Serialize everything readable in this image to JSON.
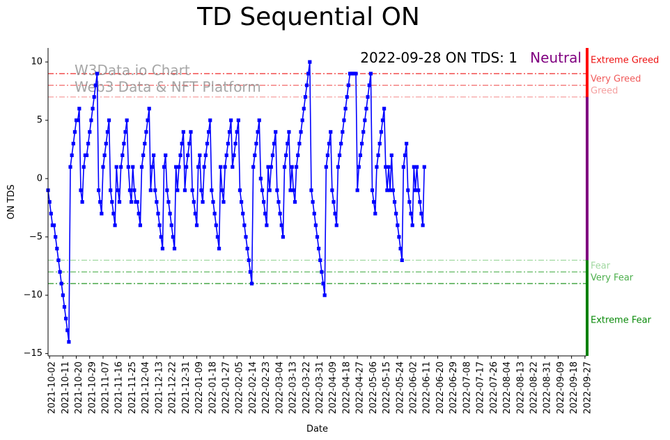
{
  "chart_data": {
    "type": "line",
    "title": "TD Sequential ON",
    "xlabel": "Date",
    "ylabel": "ON TDS",
    "ylim": [
      -15.2,
      11.2
    ],
    "yticks": [
      -15,
      -10,
      -5,
      0,
      5,
      10
    ],
    "status_text": "2022-09-28 ON TDS: 1",
    "status_label": "Neutral",
    "watermark": [
      "W3Data.io Chart",
      "Web3 Data & NFT Platform"
    ],
    "x_start": "2021-10-01",
    "x_end": "2022-09-28",
    "xtick_labels": [
      "2021-10-02",
      "2021-10-11",
      "2021-10-20",
      "2021-10-29",
      "2021-11-07",
      "2021-11-16",
      "2021-11-25",
      "2021-12-04",
      "2021-12-13",
      "2021-12-22",
      "2021-12-31",
      "2022-01-09",
      "2022-01-18",
      "2022-01-27",
      "2022-02-05",
      "2022-02-14",
      "2022-02-23",
      "2022-03-04",
      "2022-03-13",
      "2022-03-22",
      "2022-03-31",
      "2022-04-09",
      "2022-04-18",
      "2022-04-27",
      "2022-05-06",
      "2022-05-15",
      "2022-05-24",
      "2022-06-02",
      "2022-06-11",
      "2022-06-20",
      "2022-06-29",
      "2022-07-08",
      "2022-07-17",
      "2022-07-26",
      "2022-08-04",
      "2022-08-13",
      "2022-08-22",
      "2022-08-31",
      "2022-09-09",
      "2022-09-18",
      "2022-09-27"
    ],
    "thresholds": [
      {
        "label": "Extreme Greed",
        "value": 9,
        "color": "#ee1111"
      },
      {
        "label": "Very Greed",
        "value": 8,
        "color": "#f05a5a"
      },
      {
        "label": "Greed",
        "value": 7,
        "color": "#f5a0a0"
      },
      {
        "label": "Fear",
        "value": -7,
        "color": "#a0d8a0"
      },
      {
        "label": "Very Fear",
        "value": -8,
        "color": "#4caf4c"
      },
      {
        "label": "Extreme Fear",
        "value": -9,
        "color": "#0a8a0a"
      }
    ],
    "zones": [
      {
        "from": 7,
        "to": 11.2,
        "color": "#ff0000"
      },
      {
        "from": -7,
        "to": 7,
        "color": "#800080"
      },
      {
        "from": -15.2,
        "to": -7,
        "color": "#008000"
      }
    ],
    "series": [
      {
        "color": "#0000ff",
        "values": [
          -1,
          -2,
          -3,
          -4,
          -4,
          -5,
          -6,
          -7,
          -8,
          -9,
          -10,
          -11,
          -12,
          -13,
          -14,
          1,
          2,
          3,
          4,
          5,
          5,
          6,
          -1,
          -2,
          1,
          2,
          2,
          3,
          4,
          5,
          6,
          7,
          8,
          9,
          -1,
          -2,
          -3,
          1,
          2,
          3,
          4,
          5,
          -1,
          -2,
          -3,
          -4,
          1,
          -1,
          -2,
          1,
          2,
          3,
          4,
          5,
          1,
          -1,
          -2,
          1,
          -1,
          -2,
          -2,
          -3,
          -4,
          1,
          2,
          3,
          4,
          5,
          6,
          -1,
          1,
          2,
          -1,
          -2,
          -3,
          -4,
          -5,
          -6,
          1,
          2,
          -1,
          -2,
          -3,
          -4,
          -5,
          -6,
          1,
          -1,
          1,
          2,
          3,
          4,
          -1,
          1,
          2,
          3,
          4,
          -1,
          -2,
          -3,
          -4,
          1,
          2,
          -1,
          -2,
          1,
          2,
          3,
          4,
          5,
          -1,
          -2,
          -3,
          -4,
          -5,
          -6,
          1,
          -1,
          -2,
          1,
          2,
          3,
          4,
          5,
          1,
          2,
          3,
          4,
          5,
          -1,
          -2,
          -3,
          -4,
          -5,
          -6,
          -7,
          -8,
          -9,
          1,
          2,
          3,
          4,
          5,
          0,
          -1,
          -2,
          -3,
          -4,
          1,
          -1,
          1,
          2,
          3,
          4,
          -1,
          -2,
          -3,
          -4,
          -5,
          1,
          2,
          3,
          4,
          -1,
          1,
          -1,
          -2,
          1,
          2,
          3,
          4,
          5,
          6,
          7,
          8,
          9,
          10,
          -1,
          -2,
          -3,
          -4,
          -5,
          -6,
          -7,
          -8,
          -9,
          -10,
          1,
          2,
          3,
          4,
          -1,
          -2,
          -3,
          -4,
          1,
          2,
          3,
          4,
          5,
          6,
          7,
          8,
          9,
          9,
          9,
          9,
          9,
          -1,
          1,
          2,
          3,
          4,
          5,
          6,
          7,
          8,
          9,
          -1,
          -2,
          -3,
          1,
          2,
          3,
          4,
          5,
          6,
          1,
          -1,
          1,
          -1,
          2,
          -1,
          -2,
          -3,
          -4,
          -5,
          -6,
          -7,
          1,
          2,
          3,
          -1,
          -2,
          -3,
          -4,
          1,
          -1,
          1,
          -1,
          -2,
          -3,
          -4,
          1
        ]
      }
    ]
  }
}
